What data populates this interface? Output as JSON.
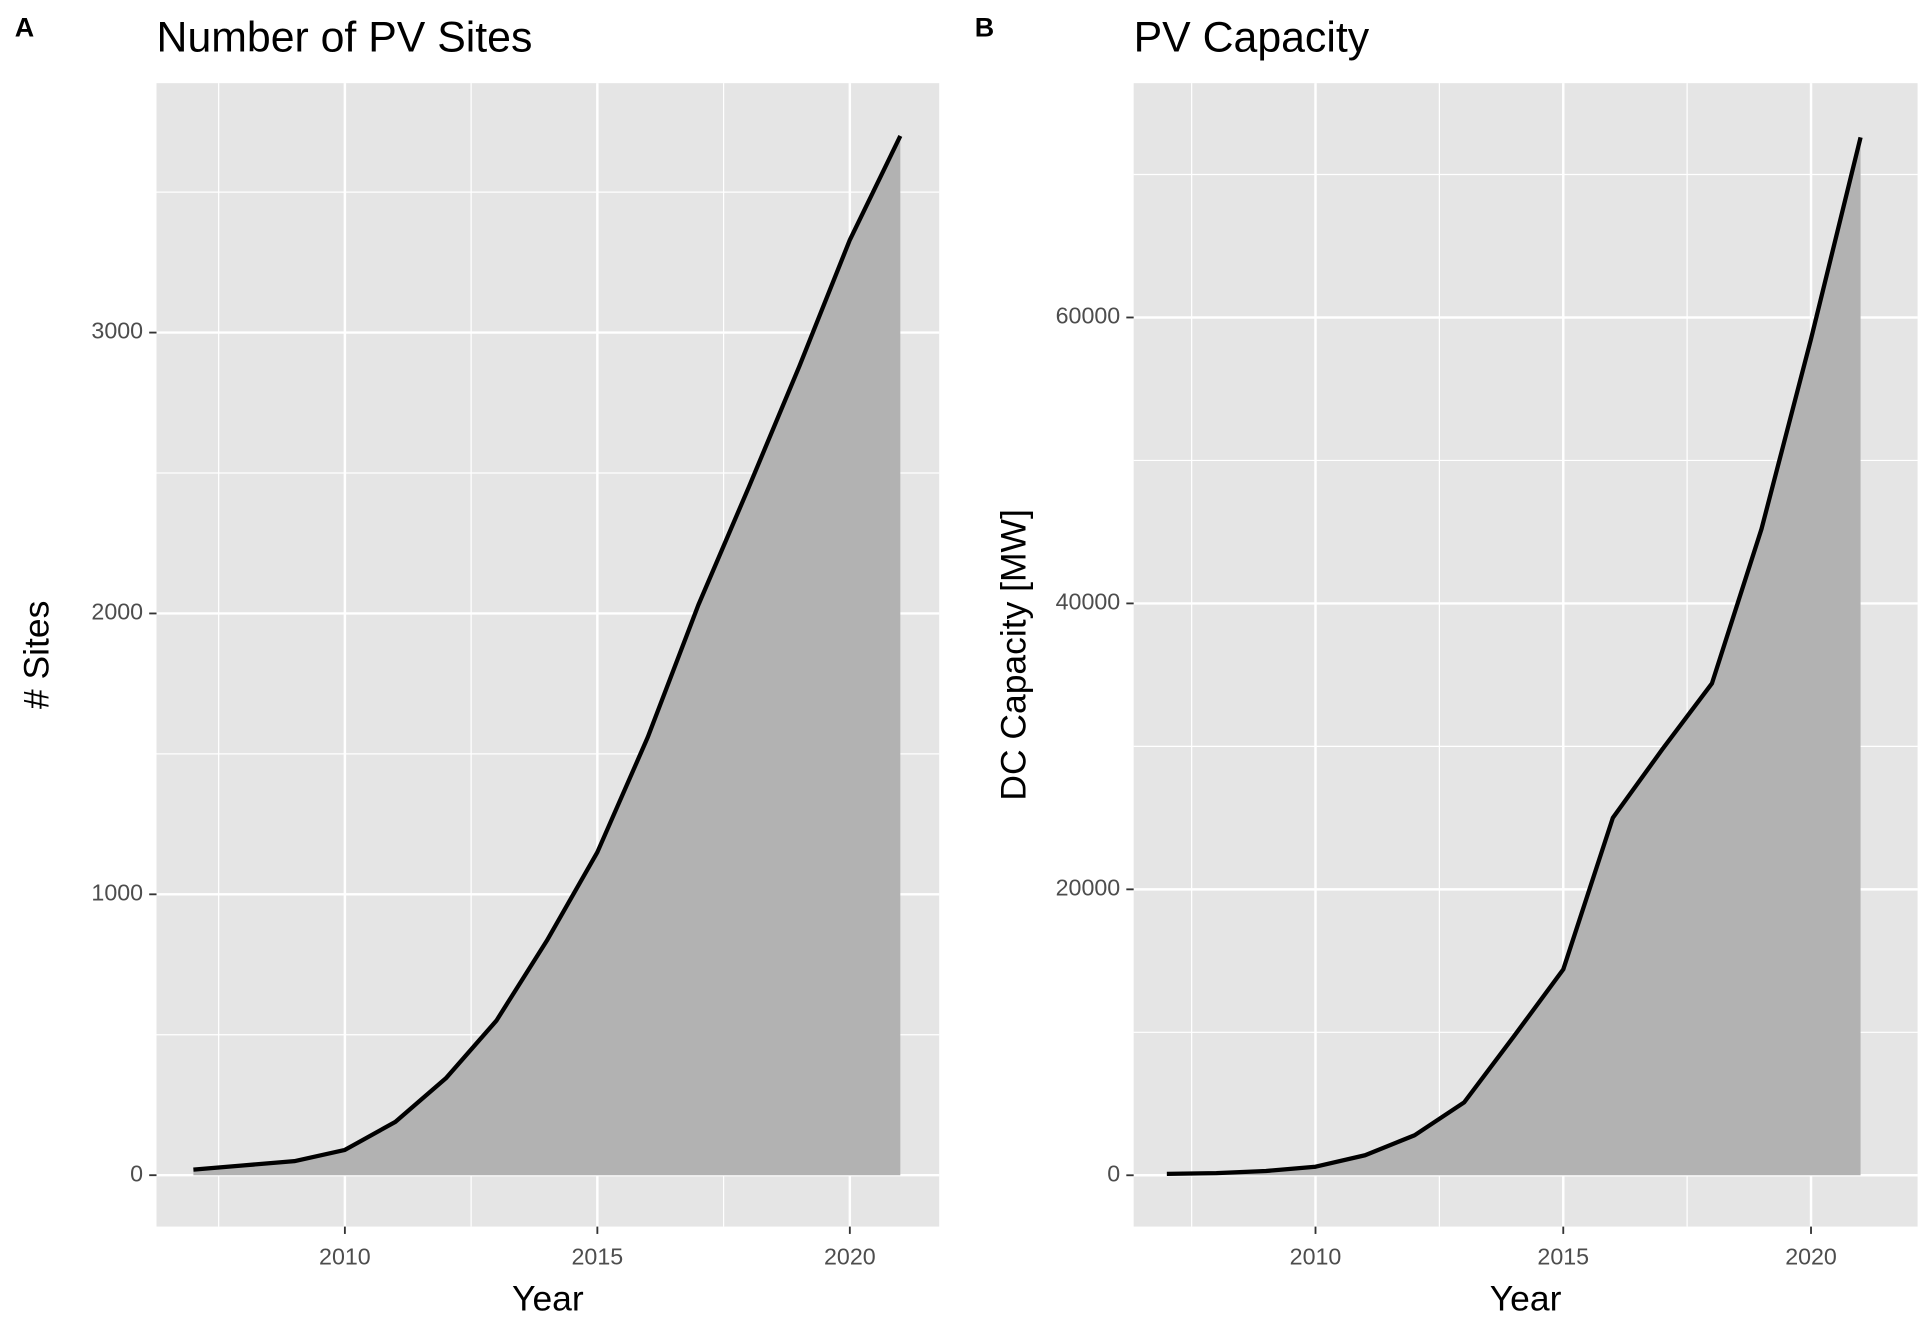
{
  "chart_data": [
    {
      "type": "area",
      "panel_label": "A",
      "title": "Number of PV Sites",
      "x_label": "Year",
      "y_label": "# Sites",
      "x": [
        2007,
        2008,
        2009,
        2010,
        2011,
        2012,
        2013,
        2014,
        2015,
        2016,
        2017,
        2018,
        2019,
        2020,
        2021
      ],
      "values": [
        20,
        35,
        50,
        90,
        190,
        345,
        550,
        835,
        1150,
        1560,
        2030,
        2450,
        2880,
        3330,
        3700
      ],
      "color": "#b2b2b2",
      "line_color": "#000000",
      "xlim": [
        2006.27,
        2021.77
      ],
      "xticks": [
        2010,
        2015,
        2020
      ],
      "ylim": [
        -183,
        3888
      ],
      "yticks": [
        0,
        1000,
        2000,
        3000
      ],
      "grid": true
    },
    {
      "type": "area",
      "panel_label": "B",
      "title": "PV Capacity",
      "x_label": "Year",
      "y_label": "DC Capacity [MW]",
      "x": [
        2007,
        2008,
        2009,
        2010,
        2011,
        2012,
        2013,
        2014,
        2015,
        2016,
        2017,
        2018,
        2019,
        2020,
        2021
      ],
      "values": [
        100,
        150,
        300,
        600,
        1400,
        2800,
        5100,
        9700,
        14400,
        25000,
        29800,
        34400,
        45200,
        58500,
        72600
      ],
      "color": "#b2b2b2",
      "line_color": "#000000",
      "xlim": [
        2006.33,
        2022.15
      ],
      "xticks": [
        2010,
        2015,
        2020
      ],
      "ylim": [
        -3590,
        76390
      ],
      "yticks": [
        0,
        20000,
        40000,
        60000
      ],
      "grid": true
    }
  ]
}
